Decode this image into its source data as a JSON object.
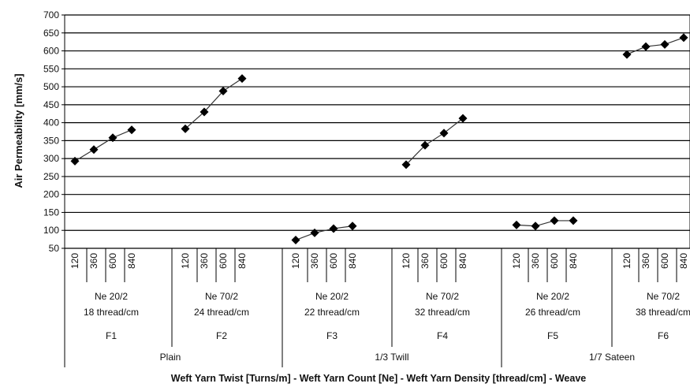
{
  "chart_data": {
    "type": "line",
    "ylabel": "Air Permeability [mm/s]",
    "xlabel": "Weft Yarn Twist [Turns/m] - Weft Yarn Count [Ne] - Weft Yarn Density [thread/cm] - Weave",
    "ylim": [
      50,
      700
    ],
    "yticks": [
      "50",
      "100",
      "150",
      "200",
      "250",
      "300",
      "350",
      "400",
      "450",
      "500",
      "550",
      "600",
      "650",
      "700"
    ],
    "grid": true,
    "legend": "none",
    "marker_color": "#000000",
    "x_levels": {
      "twist": [
        "120",
        "360",
        "600",
        "840"
      ],
      "groups": [
        {
          "fabric": "F1",
          "count": "Ne  20/2",
          "density": "18 thread/cm"
        },
        {
          "fabric": "F2",
          "count": "Ne 70/2",
          "density": "24 thread/cm"
        },
        {
          "fabric": "F3",
          "count": "Ne  20/2",
          "density": "22 thread/cm"
        },
        {
          "fabric": "F4",
          "count": "Ne 70/2",
          "density": "32 thread/cm"
        },
        {
          "fabric": "F5",
          "count": "Ne  20/2",
          "density": "26 thread/cm"
        },
        {
          "fabric": "F6",
          "count": "Ne 70/2",
          "density": "38 thread/cm"
        }
      ],
      "weaves": [
        "Plain",
        "1/3 Twill",
        "1/7 Sateen"
      ]
    },
    "series": [
      {
        "values": [
          293,
          325,
          358,
          380
        ]
      },
      {
        "values": [
          383,
          430,
          488,
          523
        ]
      },
      {
        "values": [
          73,
          93,
          105,
          112
        ]
      },
      {
        "values": [
          283,
          337,
          371,
          412
        ]
      },
      {
        "values": [
          115,
          112,
          127,
          127
        ]
      },
      {
        "values": [
          590,
          612,
          618,
          637
        ]
      }
    ]
  }
}
